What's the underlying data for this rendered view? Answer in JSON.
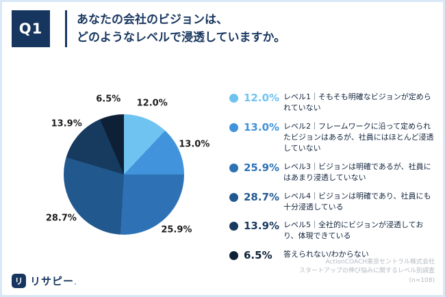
{
  "header": {
    "q_label": "Q1",
    "title_line1": "あなたの会社のビジョンは、",
    "title_line2": "どのようなレベルで浸透していますか。"
  },
  "chart_data": {
    "type": "pie",
    "title": "あなたの会社のビジョンは、どのようなレベルで浸透していますか。",
    "legend_position": "right",
    "start_angle_deg": 0,
    "direction": "clockwise",
    "slices": [
      {
        "pct": "12.0%",
        "value": 12.0,
        "color": "#6FC3F1",
        "desc": "レベル1｜そもそも明確なビジョンが定められていない"
      },
      {
        "pct": "13.0%",
        "value": 13.0,
        "color": "#4193DB",
        "desc": "レベル2｜フレームワークに沿って定められたビジョンはあるが、社員にはほとんど浸透していない"
      },
      {
        "pct": "25.9%",
        "value": 25.9,
        "color": "#2E72B5",
        "desc": "レベル3｜ビジョンは明確であるが、社員にはあまり浸透していない"
      },
      {
        "pct": "28.7%",
        "value": 28.7,
        "color": "#21598F",
        "desc": "レベル4｜ビジョンは明確であり、社員にも十分浸透している"
      },
      {
        "pct": "13.9%",
        "value": 13.9,
        "color": "#173A5F",
        "desc": "レベル5｜全社的にビジョンが浸透しており、体現できている"
      },
      {
        "pct": "6.5%",
        "value": 6.5,
        "color": "#0D2036",
        "desc": "答えられない/わからない"
      }
    ]
  },
  "footer": {
    "line1": "ActionCOACH東京セントラル株式会社",
    "line2": "スタートアップの伸び悩みに関するレベル別調査",
    "line3": "(n=108)"
  },
  "logo": {
    "icon_glyph": "リ",
    "text": "リサピー",
    "suffix": "."
  }
}
